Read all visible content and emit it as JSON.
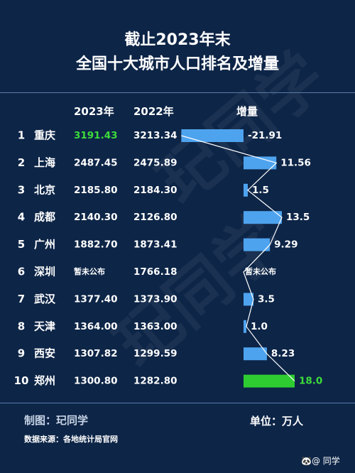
{
  "title_line1": "截止2023年末",
  "title_line2": "全国十大城市人口排名及增量",
  "headers": {
    "y2023": "2023年",
    "y2022": "2022年",
    "growth": "增量"
  },
  "colors": {
    "background": "#0d2547",
    "bar": "#4ea3ee",
    "bar_top": "#2ecc31",
    "top_value": "#3ddc3a",
    "line": "#ffffff"
  },
  "watermark_text": "玘同学",
  "footer": {
    "credit": "制图：玘同学",
    "source": "数据来源：各地统计局官网",
    "unit": "单位：万人",
    "badge": "🐼@ 同学"
  },
  "chart_data": {
    "type": "table",
    "categories": [
      "重庆",
      "上海",
      "北京",
      "成都",
      "广州",
      "深圳",
      "武汉",
      "天津",
      "西安",
      "郑州"
    ],
    "ranks": [
      "1",
      "2",
      "3",
      "4",
      "5",
      "6",
      "7",
      "8",
      "9",
      "10"
    ],
    "series": [
      {
        "name": "2023年",
        "values": [
          "3191.43",
          "2487.45",
          "2185.80",
          "2140.30",
          "1882.70",
          "暂未公布",
          "1377.40",
          "1364.00",
          "1307.82",
          "1300.80"
        ]
      },
      {
        "name": "2022年",
        "values": [
          "3213.34",
          "2475.89",
          "2184.30",
          "2126.80",
          "1873.41",
          "1766.18",
          "1373.90",
          "1363.00",
          "1299.59",
          "1282.80"
        ]
      },
      {
        "name": "增量",
        "values": [
          -21.91,
          11.56,
          1.5,
          13.5,
          9.29,
          null,
          3.5,
          1.0,
          8.23,
          18.0
        ],
        "labels": [
          "-21.91",
          "11.56",
          "1.5",
          "13.5",
          "9.29",
          "暂未公布",
          "3.5",
          "1.0",
          "8.23",
          "18.0"
        ]
      }
    ]
  }
}
